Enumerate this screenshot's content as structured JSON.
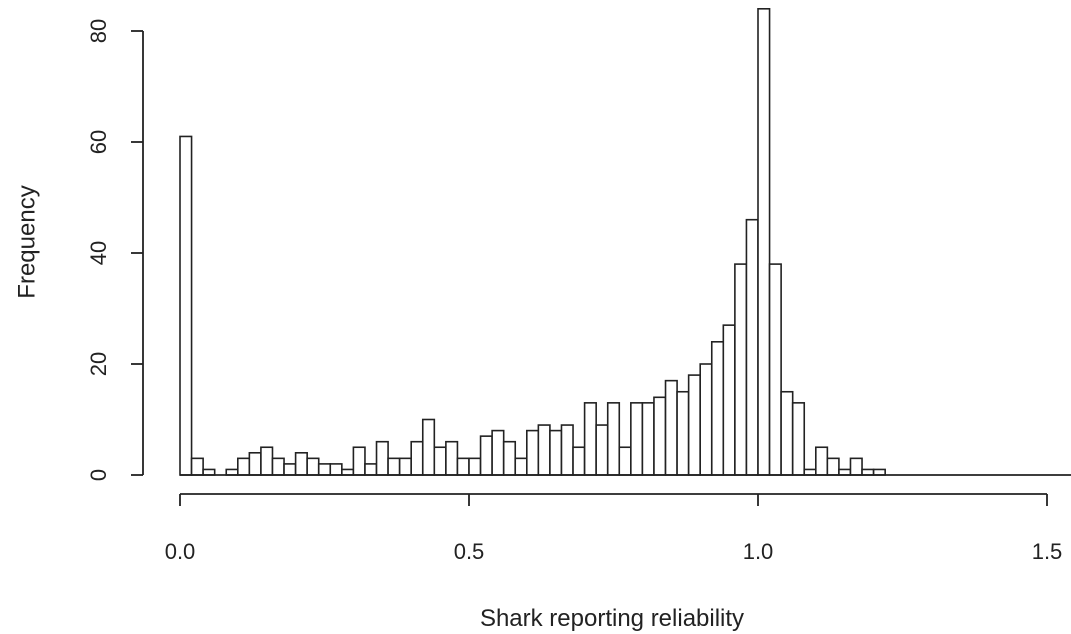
{
  "chart_data": {
    "type": "bar",
    "title": "",
    "xlabel": "Shark reporting reliability",
    "ylabel": "Frequency",
    "xlim": [
      0,
      1.5
    ],
    "ylim": [
      0,
      80
    ],
    "bin_width": 0.02,
    "bin_start": 0.0,
    "x_ticks": [
      {
        "value": 0.0,
        "label": "0.0"
      },
      {
        "value": 0.5,
        "label": "0.5"
      },
      {
        "value": 1.0,
        "label": "1.0"
      },
      {
        "value": 1.5,
        "label": "1.5"
      }
    ],
    "y_ticks": [
      {
        "value": 0,
        "label": "0"
      },
      {
        "value": 20,
        "label": "20"
      },
      {
        "value": 40,
        "label": "40"
      },
      {
        "value": 60,
        "label": "60"
      },
      {
        "value": 80,
        "label": "80"
      }
    ],
    "values": [
      61,
      3,
      1,
      0,
      1,
      3,
      4,
      5,
      3,
      2,
      4,
      3,
      2,
      2,
      1,
      5,
      2,
      6,
      3,
      3,
      6,
      10,
      5,
      6,
      3,
      3,
      7,
      8,
      6,
      3,
      8,
      9,
      8,
      9,
      5,
      13,
      9,
      13,
      5,
      13,
      13,
      14,
      17,
      15,
      18,
      20,
      24,
      27,
      38,
      46,
      84,
      38,
      15,
      13,
      1,
      5,
      3,
      1,
      3,
      1,
      1
    ],
    "grid": false,
    "legend": false
  }
}
